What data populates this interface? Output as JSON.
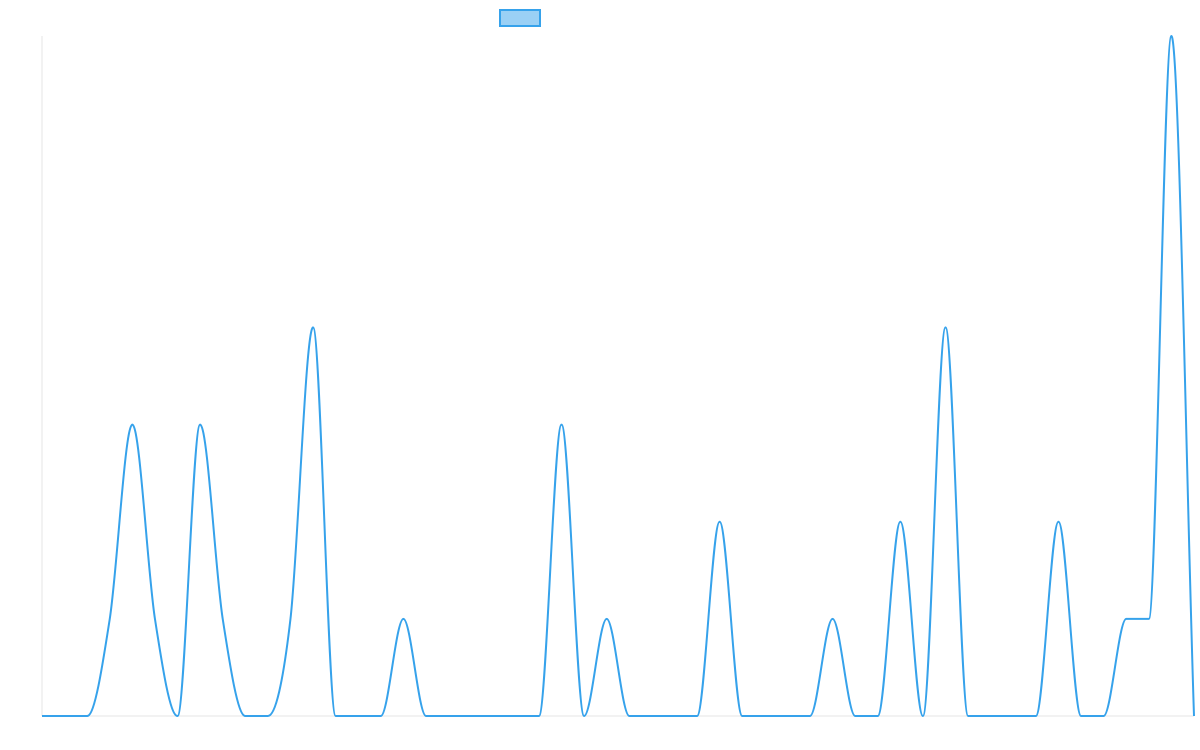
{
  "chart_data": {
    "type": "line",
    "series": [
      {
        "color": "#36a2eb",
        "fill": "#9ad0f5",
        "values": [
          0,
          0,
          0,
          1,
          3,
          1,
          0,
          3,
          1,
          0,
          0,
          1,
          4,
          0,
          0,
          0,
          1,
          0,
          0,
          0,
          0,
          0,
          0,
          3,
          0,
          1,
          0,
          0,
          0,
          0,
          2,
          0,
          0,
          0,
          0,
          1,
          0,
          0,
          2,
          0,
          4,
          0,
          0,
          0,
          0,
          2,
          0,
          0,
          1,
          1,
          7,
          0
        ]
      }
    ],
    "ylim": [
      0,
      7
    ]
  }
}
